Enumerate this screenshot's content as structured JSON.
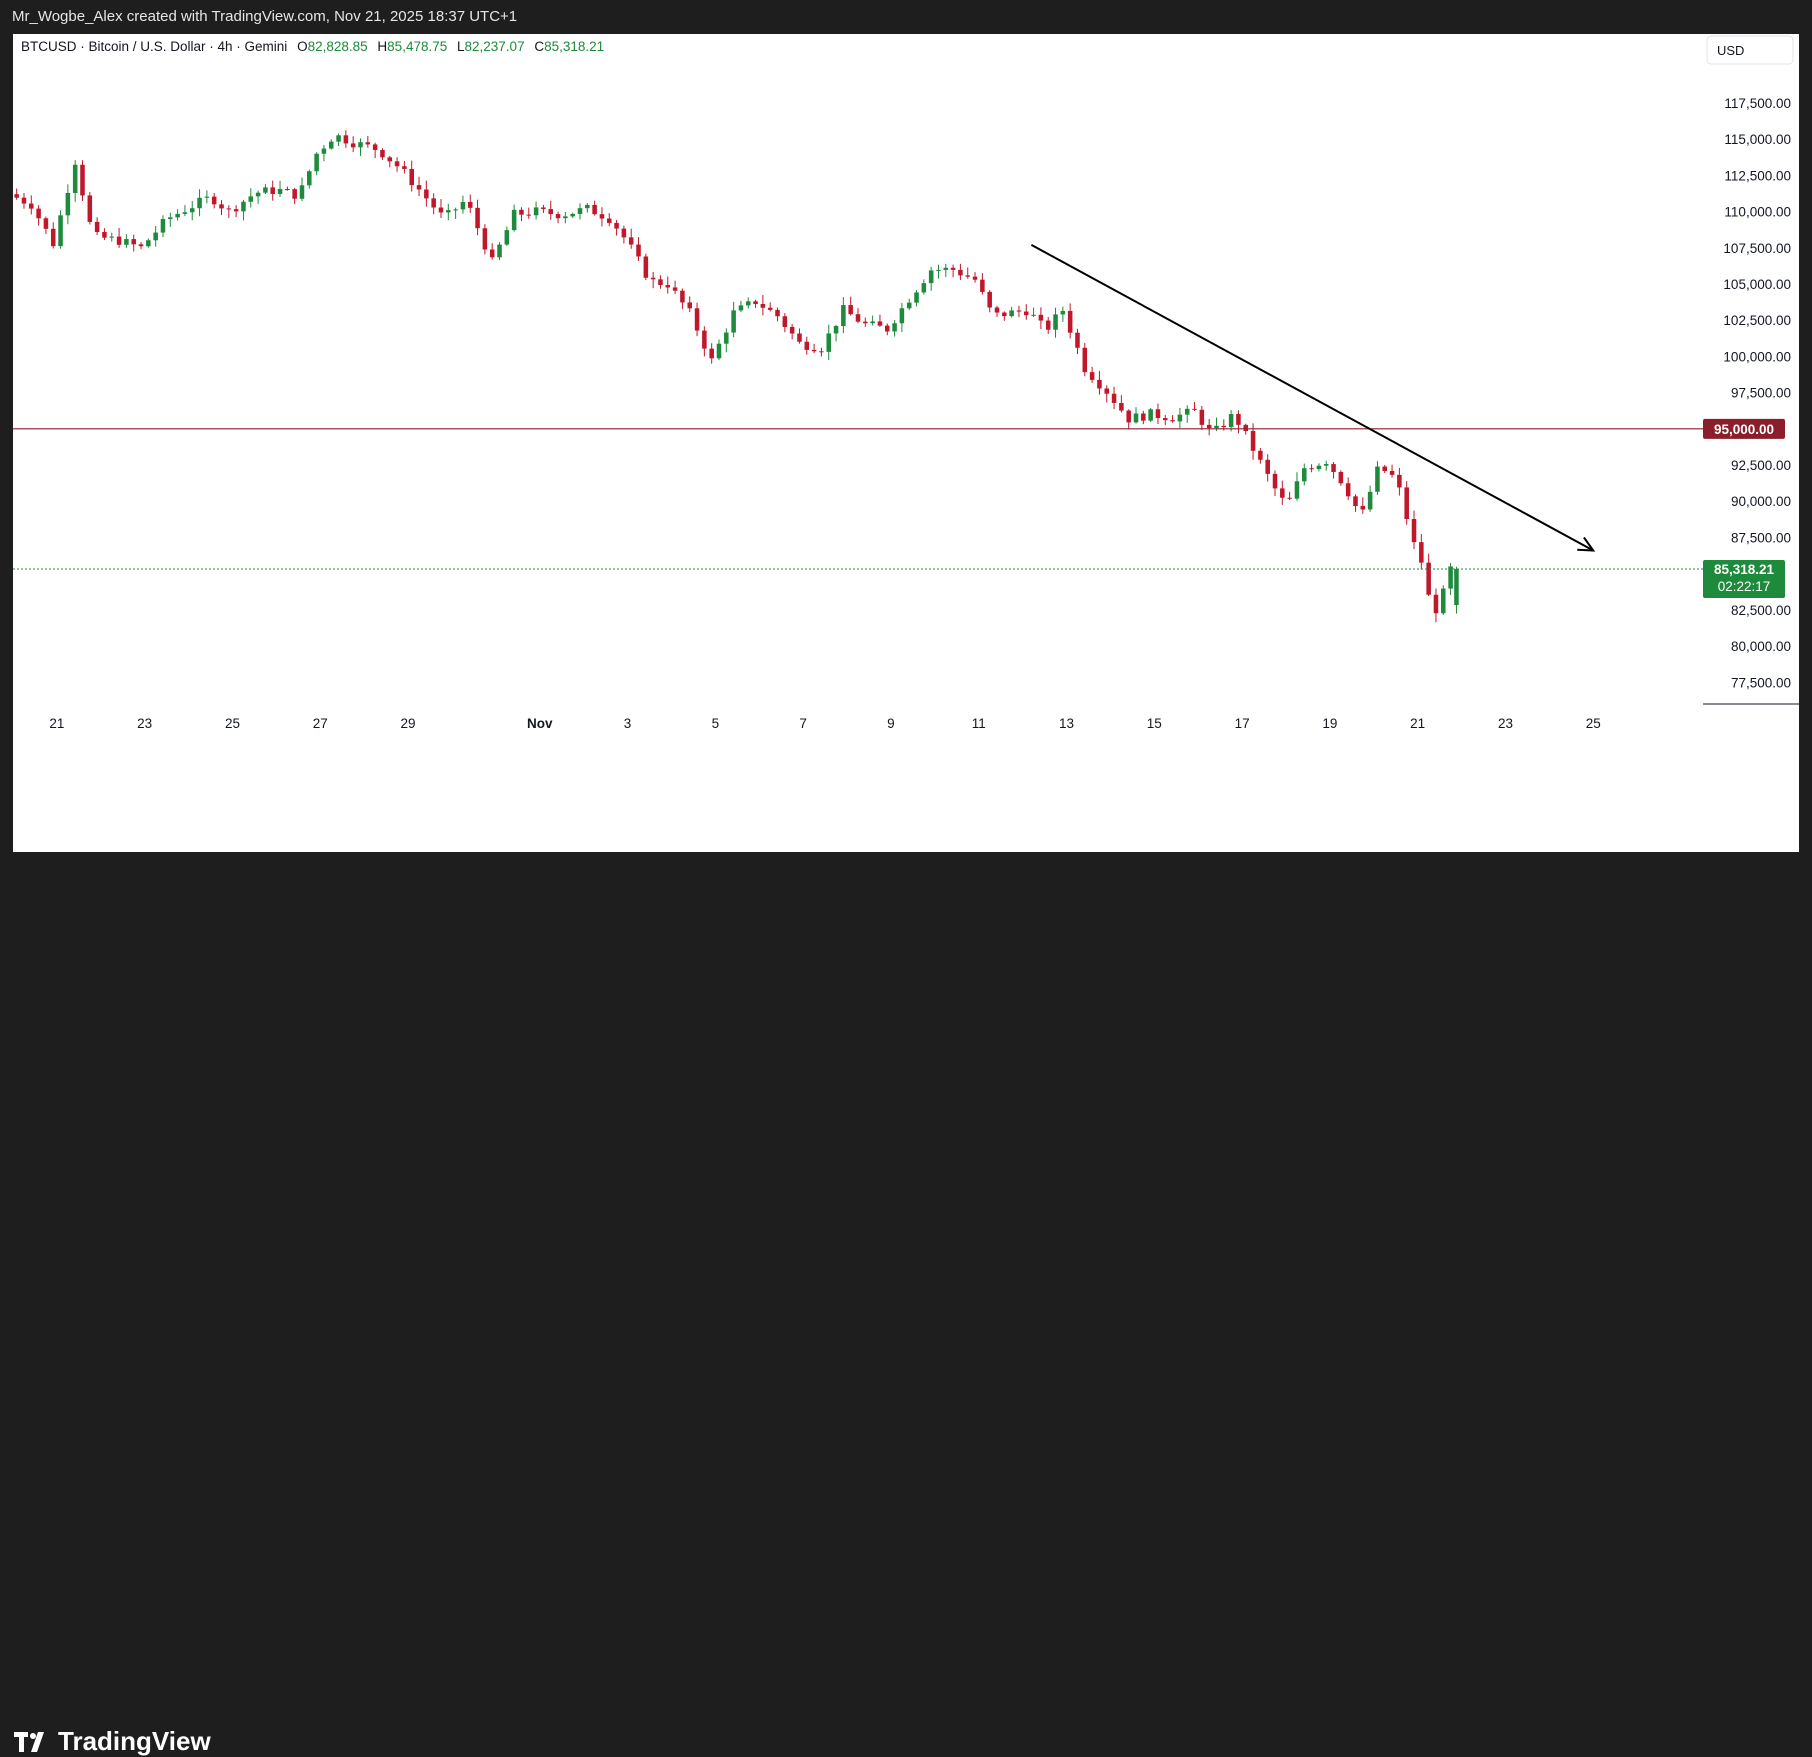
{
  "header": {
    "attribution": "Mr_Wogbe_Alex created with TradingView.com, Nov 21, 2025 18:37 UTC+1"
  },
  "legend": {
    "symbol": "BTCUSD · Bitcoin / U.S. Dollar · 4h · Gemini",
    "open_label": "O",
    "open": "82,828.85",
    "high_label": "H",
    "high": "85,478.75",
    "low_label": "L",
    "low": "82,237.07",
    "close_label": "C",
    "close": "85,318.21"
  },
  "currency": "USD",
  "colors": {
    "up": "#1e8a3c",
    "down": "#c0172b",
    "level_line": "#8b1e2b",
    "price_label": "#1e8a3c",
    "level_label": "#8b1e2b"
  },
  "price_label": {
    "price": "85,318.21",
    "countdown": "02:22:17"
  },
  "level_label": "95,000.00",
  "footer": {
    "brand": "TradingView"
  },
  "chart_data": {
    "type": "candlestick",
    "y_ticks": [
      "117,500.00",
      "115,000.00",
      "112,500.00",
      "110,000.00",
      "107,500.00",
      "105,000.00",
      "102,500.00",
      "100,000.00",
      "97,500.00",
      "92,500.00",
      "90,000.00",
      "87,500.00",
      "82,500.00",
      "80,000.00",
      "77,500.00"
    ],
    "x_ticks": [
      {
        "label": "21",
        "day": 21
      },
      {
        "label": "23",
        "day": 23
      },
      {
        "label": "25",
        "day": 25
      },
      {
        "label": "27",
        "day": 27
      },
      {
        "label": "29",
        "day": 29
      },
      {
        "label": "Nov",
        "day": 32
      },
      {
        "label": "3",
        "day": 34
      },
      {
        "label": "5",
        "day": 36
      },
      {
        "label": "7",
        "day": 38
      },
      {
        "label": "9",
        "day": 40
      },
      {
        "label": "11",
        "day": 42
      },
      {
        "label": "13",
        "day": 44
      },
      {
        "label": "15",
        "day": 46
      },
      {
        "label": "17",
        "day": 48
      },
      {
        "label": "19",
        "day": 50
      },
      {
        "label": "21",
        "day": 52
      },
      {
        "label": "23",
        "day": 54
      },
      {
        "label": "25",
        "day": 56
      }
    ],
    "ylim": [
      76000,
      119500
    ],
    "xlim": [
      20.0,
      58.5
    ],
    "horizontal_line": 95000,
    "last_price": 85318.21,
    "trend_arrow": {
      "from": [
        43.2,
        107700
      ],
      "to": [
        56.0,
        86600
      ]
    },
    "path": [
      [
        20.0,
        111200
      ],
      [
        20.5,
        110500
      ],
      [
        21.0,
        107800
      ],
      [
        21.5,
        113500
      ],
      [
        21.9,
        108300
      ],
      [
        22.5,
        108000
      ],
      [
        23.0,
        107500
      ],
      [
        23.6,
        109500
      ],
      [
        24.1,
        110300
      ],
      [
        24.6,
        111000
      ],
      [
        25.0,
        110000
      ],
      [
        25.6,
        111300
      ],
      [
        26.1,
        111500
      ],
      [
        26.6,
        111100
      ],
      [
        27.0,
        114000
      ],
      [
        27.4,
        115300
      ],
      [
        27.9,
        114700
      ],
      [
        28.4,
        114300
      ],
      [
        28.9,
        113000
      ],
      [
        29.4,
        111300
      ],
      [
        29.9,
        109500
      ],
      [
        30.4,
        110800
      ],
      [
        31.0,
        106500
      ],
      [
        31.5,
        109800
      ],
      [
        32.0,
        110000
      ],
      [
        32.6,
        109800
      ],
      [
        33.2,
        110200
      ],
      [
        33.7,
        109500
      ],
      [
        34.1,
        107800
      ],
      [
        34.6,
        105200
      ],
      [
        35.0,
        105000
      ],
      [
        35.5,
        103000
      ],
      [
        36.0,
        99700
      ],
      [
        36.5,
        103000
      ],
      [
        37.0,
        103800
      ],
      [
        37.5,
        102800
      ],
      [
        38.0,
        100900
      ],
      [
        38.5,
        100600
      ],
      [
        39.0,
        103200
      ],
      [
        39.5,
        102200
      ],
      [
        40.0,
        101900
      ],
      [
        40.5,
        104000
      ],
      [
        41.0,
        106000
      ],
      [
        41.5,
        106000
      ],
      [
        42.0,
        105300
      ],
      [
        42.4,
        102800
      ],
      [
        43.2,
        103200
      ],
      [
        43.6,
        101800
      ],
      [
        44.0,
        103200
      ],
      [
        44.5,
        99200
      ],
      [
        45.0,
        97600
      ],
      [
        45.5,
        95700
      ],
      [
        46.0,
        96000
      ],
      [
        46.5,
        95800
      ],
      [
        47.0,
        96200
      ],
      [
        47.4,
        94600
      ],
      [
        47.9,
        96000
      ],
      [
        48.3,
        93800
      ],
      [
        48.8,
        91000
      ],
      [
        49.1,
        89600
      ],
      [
        49.5,
        92300
      ],
      [
        50.0,
        92800
      ],
      [
        50.4,
        91200
      ],
      [
        50.8,
        88900
      ],
      [
        51.2,
        92400
      ],
      [
        51.6,
        91500
      ],
      [
        52.0,
        87000
      ],
      [
        52.2,
        85600
      ],
      [
        52.4,
        82300
      ],
      [
        52.6,
        82800
      ],
      [
        52.8,
        85300
      ]
    ]
  }
}
